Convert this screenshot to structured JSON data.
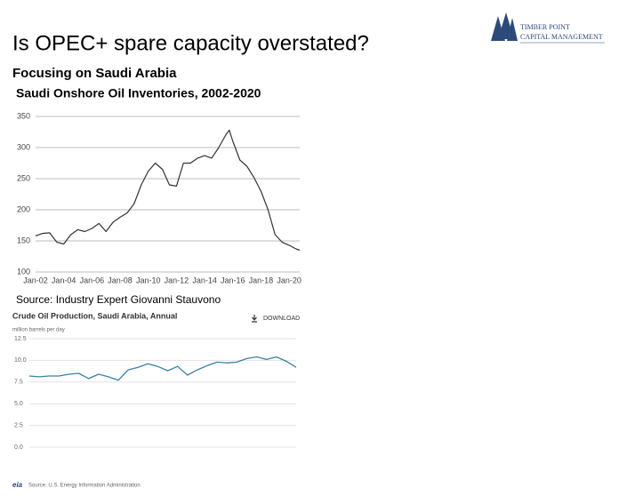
{
  "title": "Is OPEC+ spare capacity overstated?",
  "subtitle": "Focusing on Saudi Arabia",
  "logo": [
    "TIMBER POINT",
    "CAPITAL MANAGEMENT"
  ],
  "source": "Source: Industry Expert Giovanni Stauvono",
  "footer_logo": "eia",
  "footer": "Source: U.S. Energy Information Administration",
  "chart_data": [
    {
      "type": "line",
      "title": "Saudi Onshore Oil Inventories, 2002-2020",
      "color": "#333333",
      "x": [
        "2002-01",
        "2002-07",
        "2003-01",
        "2003-07",
        "2004-01",
        "2004-07",
        "2005-01",
        "2005-07",
        "2006-01",
        "2006-07",
        "2007-01",
        "2007-07",
        "2008-01",
        "2008-07",
        "2009-01",
        "2009-07",
        "2010-01",
        "2010-07",
        "2011-01",
        "2011-07",
        "2012-01",
        "2012-07",
        "2013-01",
        "2013-07",
        "2014-01",
        "2014-07",
        "2015-01",
        "2015-07",
        "2015-10",
        "2016-01",
        "2016-07",
        "2017-01",
        "2017-07",
        "2018-01",
        "2018-07",
        "2019-01",
        "2019-07",
        "2020-01",
        "2020-07",
        "2020-10"
      ],
      "values": [
        158,
        162,
        163,
        148,
        145,
        160,
        168,
        165,
        170,
        178,
        165,
        180,
        188,
        195,
        210,
        240,
        262,
        275,
        265,
        240,
        238,
        275,
        275,
        283,
        287,
        283,
        300,
        320,
        328,
        310,
        280,
        270,
        252,
        230,
        200,
        160,
        148,
        143,
        137,
        135
      ],
      "xlim": [
        "2002-01",
        "2020-10"
      ],
      "xticks": [
        {
          "value": "2002-01",
          "label": "Jan-02"
        },
        {
          "value": "2004-01",
          "label": "Jan-04"
        },
        {
          "value": "2006-01",
          "label": "Jan-06"
        },
        {
          "value": "2008-01",
          "label": "Jan-08"
        },
        {
          "value": "2010-01",
          "label": "Jan-10"
        },
        {
          "value": "2012-01",
          "label": "Jan-12"
        },
        {
          "value": "2014-01",
          "label": "Jan-14"
        },
        {
          "value": "2016-01",
          "label": "Jan-16"
        },
        {
          "value": "2018-01",
          "label": "Jan-18"
        },
        {
          "value": "2020-01",
          "label": "Jan-20"
        }
      ],
      "ylim": [
        100,
        350
      ],
      "yticks": [
        100,
        150,
        200,
        250,
        300,
        350
      ],
      "grid": true
    },
    {
      "type": "line",
      "title": "Crude Oil Production, Saudi Arabia, Annual",
      "ylabel": "million barrels per day",
      "button": "DOWNLOAD",
      "color": "#3a82a3",
      "values": [
        8.2,
        8.1,
        8.2,
        8.2,
        8.4,
        8.5,
        7.9,
        8.4,
        8.1,
        7.7,
        8.9,
        9.2,
        9.6,
        9.3,
        8.8,
        9.3,
        8.3,
        8.9,
        9.4,
        9.8,
        9.7,
        9.8,
        10.2,
        10.4,
        10.1,
        10.4,
        9.9,
        9.2
      ],
      "ylim": [
        0,
        12.5
      ],
      "yticks": [
        {
          "value": 0,
          "label": "0.0"
        },
        2.5,
        {
          "value": 5,
          "label": "5.0"
        },
        7.5,
        {
          "value": 10,
          "label": "10.0"
        },
        12.5
      ],
      "grid": true
    }
  ]
}
